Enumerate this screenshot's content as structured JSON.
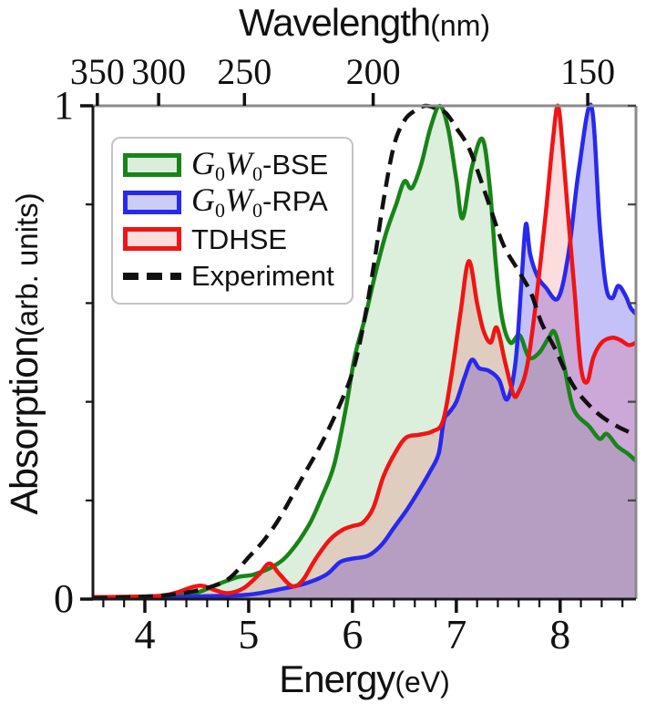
{
  "chart_data": {
    "type": "area",
    "title": "",
    "xlabel": "Energy",
    "xlabel_unit": "(eV)",
    "ylabel": "Absorption",
    "ylabel_unit": "(arb. units)",
    "x_range": [
      3.5,
      8.73
    ],
    "y_range": [
      0,
      1
    ],
    "x_major_ticks": [
      4,
      5,
      6,
      7,
      8
    ],
    "x_minor_step": 0.2,
    "y_major_ticks": [
      0,
      1
    ],
    "y_minor_ticks": [
      0.2,
      0.4,
      0.6,
      0.8
    ],
    "grid": false,
    "top_axis": {
      "label": "Wavelength",
      "unit": "(nm)",
      "ticks_nm": [
        350,
        300,
        250,
        200,
        150
      ],
      "ev_nm_product": 1239.84
    },
    "series": [
      {
        "name": "G0W0-BSE",
        "color": "#188418",
        "fill": "rgba(40,150,40,0.16)",
        "dashed": false,
        "points": [
          [
            3.5,
            0.004
          ],
          [
            4.0,
            0.005
          ],
          [
            4.3,
            0.008
          ],
          [
            4.5,
            0.013
          ],
          [
            4.7,
            0.03
          ],
          [
            4.9,
            0.045
          ],
          [
            5.05,
            0.05
          ],
          [
            5.25,
            0.068
          ],
          [
            5.4,
            0.095
          ],
          [
            5.58,
            0.15
          ],
          [
            5.7,
            0.205
          ],
          [
            5.82,
            0.27
          ],
          [
            5.93,
            0.38
          ],
          [
            6.02,
            0.49
          ],
          [
            6.12,
            0.57
          ],
          [
            6.22,
            0.66
          ],
          [
            6.32,
            0.74
          ],
          [
            6.42,
            0.8
          ],
          [
            6.5,
            0.847
          ],
          [
            6.57,
            0.833
          ],
          [
            6.66,
            0.88
          ],
          [
            6.75,
            0.955
          ],
          [
            6.84,
            1.0
          ],
          [
            6.92,
            0.955
          ],
          [
            7.0,
            0.85
          ],
          [
            7.06,
            0.772
          ],
          [
            7.15,
            0.875
          ],
          [
            7.25,
            0.933
          ],
          [
            7.32,
            0.84
          ],
          [
            7.38,
            0.68
          ],
          [
            7.44,
            0.57
          ],
          [
            7.52,
            0.52
          ],
          [
            7.61,
            0.535
          ],
          [
            7.7,
            0.49
          ],
          [
            7.8,
            0.5
          ],
          [
            7.89,
            0.53
          ],
          [
            7.95,
            0.54
          ],
          [
            8.04,
            0.47
          ],
          [
            8.13,
            0.385
          ],
          [
            8.28,
            0.35
          ],
          [
            8.38,
            0.325
          ],
          [
            8.45,
            0.335
          ],
          [
            8.55,
            0.31
          ],
          [
            8.65,
            0.295
          ],
          [
            8.73,
            0.28
          ]
        ]
      },
      {
        "name": "G0W0-RPA",
        "color": "#2828ee",
        "fill": "rgba(60,50,235,0.30)",
        "dashed": false,
        "points": [
          [
            3.5,
            0.003
          ],
          [
            4.2,
            0.004
          ],
          [
            4.6,
            0.006
          ],
          [
            5.0,
            0.009
          ],
          [
            5.3,
            0.02
          ],
          [
            5.55,
            0.032
          ],
          [
            5.75,
            0.05
          ],
          [
            5.88,
            0.075
          ],
          [
            6.0,
            0.082
          ],
          [
            6.15,
            0.088
          ],
          [
            6.28,
            0.11
          ],
          [
            6.4,
            0.145
          ],
          [
            6.52,
            0.18
          ],
          [
            6.64,
            0.22
          ],
          [
            6.75,
            0.26
          ],
          [
            6.83,
            0.295
          ],
          [
            6.88,
            0.362
          ],
          [
            6.93,
            0.378
          ],
          [
            7.0,
            0.4
          ],
          [
            7.08,
            0.45
          ],
          [
            7.15,
            0.485
          ],
          [
            7.22,
            0.468
          ],
          [
            7.31,
            0.463
          ],
          [
            7.41,
            0.445
          ],
          [
            7.49,
            0.405
          ],
          [
            7.57,
            0.48
          ],
          [
            7.63,
            0.65
          ],
          [
            7.67,
            0.76
          ],
          [
            7.71,
            0.7
          ],
          [
            7.78,
            0.655
          ],
          [
            7.86,
            0.632
          ],
          [
            7.98,
            0.61
          ],
          [
            8.08,
            0.7
          ],
          [
            8.18,
            0.87
          ],
          [
            8.3,
            1.0
          ],
          [
            8.38,
            0.76
          ],
          [
            8.44,
            0.635
          ],
          [
            8.5,
            0.61
          ],
          [
            8.56,
            0.635
          ],
          [
            8.63,
            0.615
          ],
          [
            8.68,
            0.59
          ],
          [
            8.73,
            0.578
          ]
        ]
      },
      {
        "name": "TDHSE",
        "color": "#f01414",
        "fill": "rgba(240,50,50,0.17)",
        "dashed": false,
        "points": [
          [
            3.5,
            0.004
          ],
          [
            4.1,
            0.006
          ],
          [
            4.3,
            0.013
          ],
          [
            4.45,
            0.024
          ],
          [
            4.55,
            0.027
          ],
          [
            4.68,
            0.018
          ],
          [
            4.8,
            0.012
          ],
          [
            4.95,
            0.022
          ],
          [
            5.1,
            0.05
          ],
          [
            5.2,
            0.072
          ],
          [
            5.3,
            0.05
          ],
          [
            5.42,
            0.026
          ],
          [
            5.52,
            0.038
          ],
          [
            5.64,
            0.08
          ],
          [
            5.78,
            0.12
          ],
          [
            5.9,
            0.14
          ],
          [
            6.0,
            0.148
          ],
          [
            6.1,
            0.155
          ],
          [
            6.2,
            0.185
          ],
          [
            6.3,
            0.25
          ],
          [
            6.42,
            0.3
          ],
          [
            6.52,
            0.328
          ],
          [
            6.64,
            0.333
          ],
          [
            6.77,
            0.34
          ],
          [
            6.87,
            0.36
          ],
          [
            6.95,
            0.45
          ],
          [
            7.04,
            0.58
          ],
          [
            7.12,
            0.685
          ],
          [
            7.2,
            0.6
          ],
          [
            7.26,
            0.545
          ],
          [
            7.33,
            0.52
          ],
          [
            7.39,
            0.55
          ],
          [
            7.47,
            0.48
          ],
          [
            7.55,
            0.415
          ],
          [
            7.6,
            0.42
          ],
          [
            7.68,
            0.47
          ],
          [
            7.76,
            0.59
          ],
          [
            7.86,
            0.78
          ],
          [
            7.93,
            0.93
          ],
          [
            7.98,
            1.0
          ],
          [
            8.03,
            0.9
          ],
          [
            8.08,
            0.77
          ],
          [
            8.14,
            0.62
          ],
          [
            8.2,
            0.47
          ],
          [
            8.26,
            0.44
          ],
          [
            8.32,
            0.49
          ],
          [
            8.4,
            0.52
          ],
          [
            8.5,
            0.53
          ],
          [
            8.58,
            0.525
          ],
          [
            8.66,
            0.515
          ],
          [
            8.73,
            0.52
          ]
        ]
      },
      {
        "name": "Experiment",
        "color": "#111111",
        "fill": null,
        "dashed": true,
        "points": [
          [
            3.5,
            0.002
          ],
          [
            4.0,
            0.005
          ],
          [
            4.3,
            0.01
          ],
          [
            4.55,
            0.02
          ],
          [
            4.8,
            0.04
          ],
          [
            5.0,
            0.085
          ],
          [
            5.15,
            0.12
          ],
          [
            5.3,
            0.165
          ],
          [
            5.5,
            0.24
          ],
          [
            5.7,
            0.315
          ],
          [
            5.87,
            0.39
          ],
          [
            6.0,
            0.46
          ],
          [
            6.1,
            0.55
          ],
          [
            6.2,
            0.67
          ],
          [
            6.3,
            0.81
          ],
          [
            6.4,
            0.92
          ],
          [
            6.5,
            0.97
          ],
          [
            6.6,
            0.99
          ],
          [
            6.7,
            1.0
          ],
          [
            6.8,
            0.995
          ],
          [
            6.9,
            0.985
          ],
          [
            7.0,
            0.955
          ],
          [
            7.13,
            0.91
          ],
          [
            7.3,
            0.81
          ],
          [
            7.45,
            0.72
          ],
          [
            7.6,
            0.665
          ],
          [
            7.72,
            0.62
          ],
          [
            7.82,
            0.56
          ],
          [
            7.95,
            0.508
          ],
          [
            8.05,
            0.462
          ],
          [
            8.15,
            0.425
          ],
          [
            8.27,
            0.395
          ],
          [
            8.4,
            0.37
          ],
          [
            8.55,
            0.35
          ],
          [
            8.65,
            0.34
          ],
          [
            8.73,
            0.332
          ]
        ]
      }
    ],
    "legend": {
      "position": "upper-left",
      "items": [
        {
          "id": "g0w0-bse",
          "swatch": {
            "type": "box",
            "stroke": "#188418",
            "fill": "#daeeda"
          },
          "segments": [
            {
              "t": "G",
              "s": "mi"
            },
            {
              "t": "0",
              "s": "msub"
            },
            {
              "t": "W",
              "s": "mi"
            },
            {
              "t": "0",
              "s": "msub"
            },
            {
              "t": "-BSE",
              "s": "p"
            }
          ]
        },
        {
          "id": "g0w0-rpa",
          "swatch": {
            "type": "box",
            "stroke": "#2828ee",
            "fill": "#ccccf4"
          },
          "segments": [
            {
              "t": "G",
              "s": "mi"
            },
            {
              "t": "0",
              "s": "msub"
            },
            {
              "t": "W",
              "s": "mi"
            },
            {
              "t": "0",
              "s": "msub"
            },
            {
              "t": "-RPA",
              "s": "p"
            }
          ]
        },
        {
          "id": "tdhse",
          "swatch": {
            "type": "box",
            "stroke": "#f01414",
            "fill": "#fbdcdc"
          },
          "segments": [
            {
              "t": "TDHSE",
              "s": "p"
            }
          ]
        },
        {
          "id": "experiment",
          "swatch": {
            "type": "dash",
            "stroke": "#111111"
          },
          "segments": [
            {
              "t": "Experiment",
              "s": "p"
            }
          ]
        }
      ]
    }
  }
}
